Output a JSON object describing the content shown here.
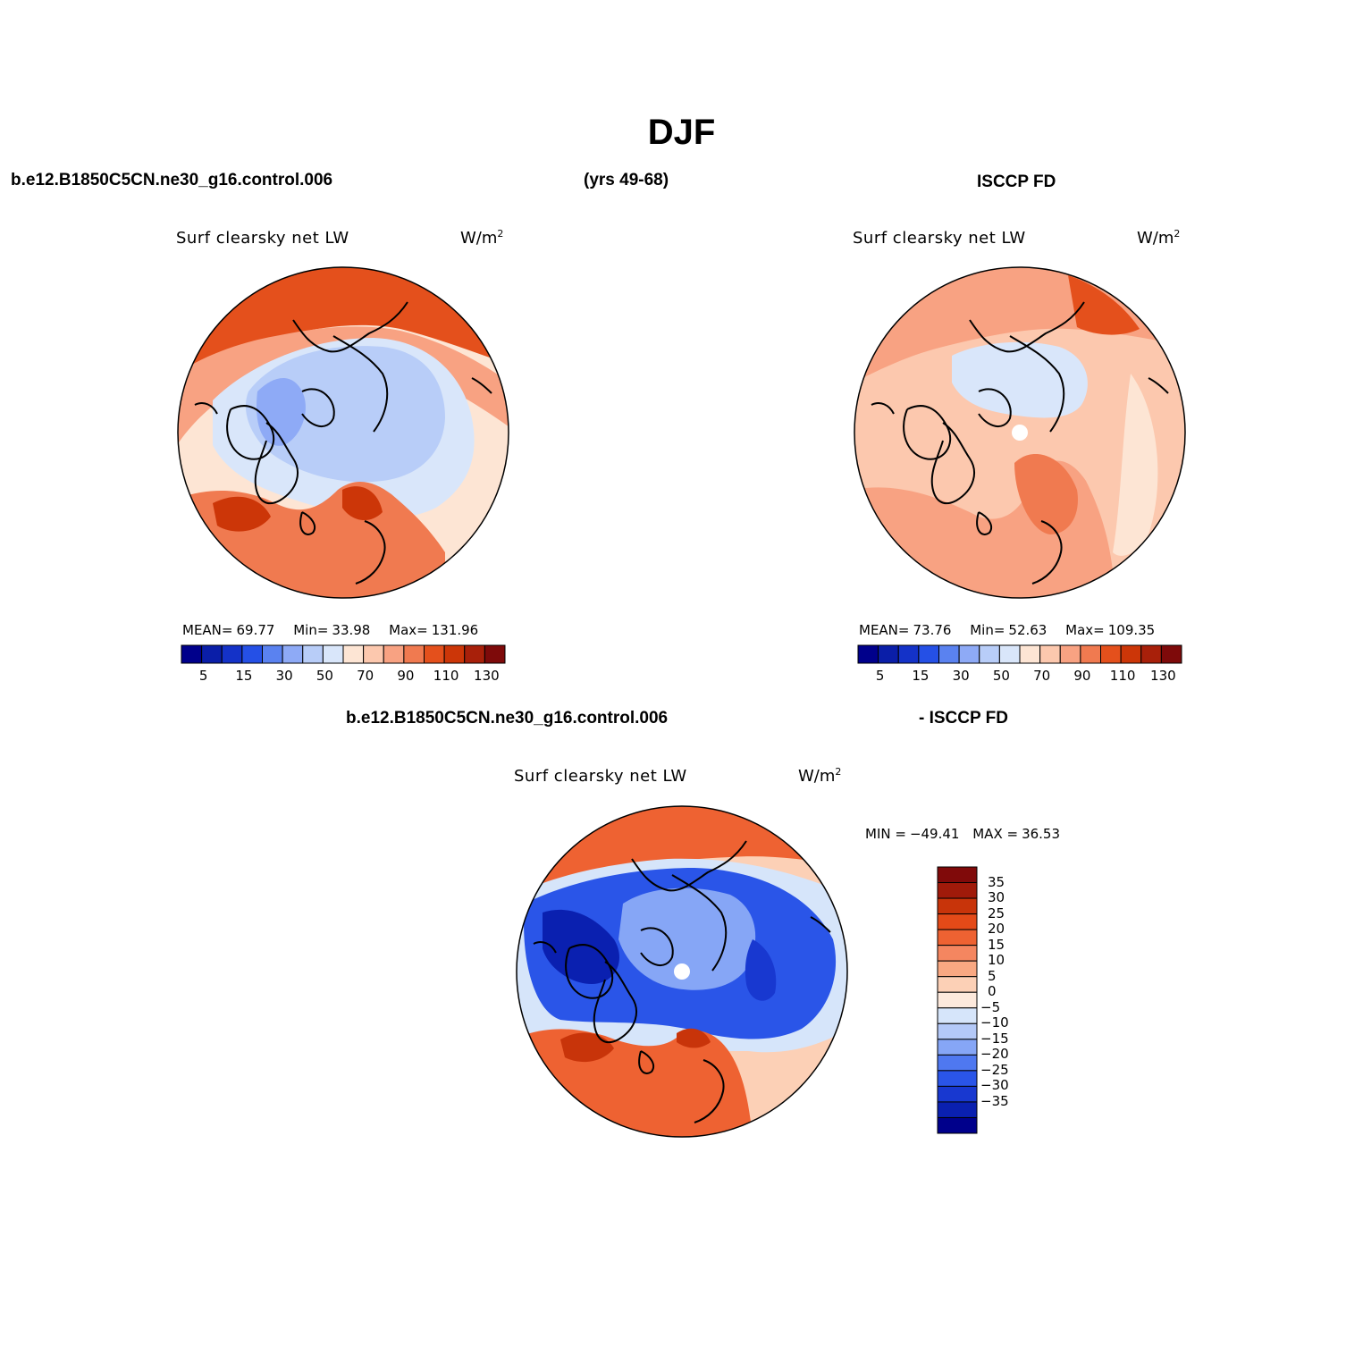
{
  "page": {
    "season": "DJF",
    "case_name": "b.e12.B1850C5CN.ne30_g16.control.006",
    "years": "(yrs 49-68)",
    "obs_name": "ISCCP FD",
    "diff_case_name": "b.e12.B1850C5CN.ne30_g16.control.006",
    "diff_obs_name": "- ISCCP FD"
  },
  "panels": {
    "model": {
      "title": "Surf clearsky net LW",
      "units": "W/m",
      "units_sup": "2",
      "mean_label": "MEAN=",
      "mean_value": "69.77",
      "min_label": "Min=",
      "min_value": "33.98",
      "max_label": "Max=",
      "max_value": "131.96"
    },
    "obs": {
      "title": "Surf clearsky net LW",
      "units": "W/m",
      "units_sup": "2",
      "mean_label": "MEAN=",
      "mean_value": "73.76",
      "min_label": "Min=",
      "min_value": "52.63",
      "max_label": "Max=",
      "max_value": "109.35"
    },
    "diff": {
      "title": "Surf clearsky net LW",
      "units": "W/m",
      "units_sup": "2",
      "min_label": "MIN =",
      "min_value": "−49.41",
      "max_label": "MAX =",
      "max_value": "36.53"
    }
  },
  "colorbars": {
    "abs_colors": [
      "#00008b",
      "#0a1ea8",
      "#1432c8",
      "#2550e6",
      "#5a82f0",
      "#8eaaf6",
      "#b8cdf8",
      "#d9e6fa",
      "#fde5d4",
      "#fcc8ae",
      "#f8a282",
      "#f07a50",
      "#e4501c",
      "#cc3608",
      "#a8200a",
      "#7e0a0a"
    ],
    "abs_ticks": [
      "5",
      "15",
      "30",
      "50",
      "70",
      "90",
      "110",
      "130"
    ],
    "diff_colors": [
      "#00008b",
      "#0a20b0",
      "#1838d0",
      "#2a55e8",
      "#4f78f0",
      "#86a6f6",
      "#b4c9f8",
      "#d6e5fa",
      "#fde9dc",
      "#fcd0b6",
      "#f9a882",
      "#f48660",
      "#ee6232",
      "#e44a18",
      "#c8340a",
      "#a01a0a",
      "#800a0a"
    ],
    "diff_ticks": [
      "35",
      "30",
      "25",
      "20",
      "15",
      "10",
      "5",
      "0",
      "−5",
      "−10",
      "−15",
      "−20",
      "−25",
      "−30",
      "−35"
    ]
  },
  "fields": {
    "model_colors": [
      "#e4501c",
      "#f8a282",
      "#fde5d4",
      "#d9e6fa",
      "#b8cdf8",
      "#8eaaf6",
      "#cc3608",
      "#f07a50"
    ],
    "obs_colors": [
      "#f8a282",
      "#fcc8ae",
      "#fde5d4",
      "#d9e6fa",
      "#f07a50",
      "#e4501c"
    ],
    "diff_colors": [
      "#ee6232",
      "#fcd0b6",
      "#d6e5fa",
      "#86a6f6",
      "#2a55e8",
      "#1838d0",
      "#0a20b0",
      "#c8340a"
    ]
  }
}
